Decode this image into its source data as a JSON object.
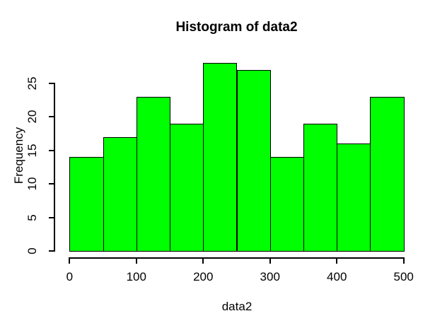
{
  "chart_data": {
    "type": "bar",
    "subtype": "histogram",
    "title": "Histogram of data2",
    "xlabel": "data2",
    "ylabel": "Frequency",
    "bin_edges": [
      0,
      50,
      100,
      150,
      200,
      250,
      300,
      350,
      400,
      450,
      500
    ],
    "values": [
      14,
      17,
      23,
      19,
      28,
      27,
      14,
      19,
      16,
      23
    ],
    "x_ticks": [
      0,
      100,
      200,
      300,
      400,
      500
    ],
    "y_ticks": [
      0,
      5,
      10,
      15,
      20,
      25
    ],
    "xlim": [
      0,
      500
    ],
    "ylim": [
      0,
      28
    ],
    "grid": false,
    "legend": null,
    "bar_fill": "#00FF00",
    "bar_border": "#000000",
    "background": "#FFFFFF",
    "text_color": "#000000"
  }
}
